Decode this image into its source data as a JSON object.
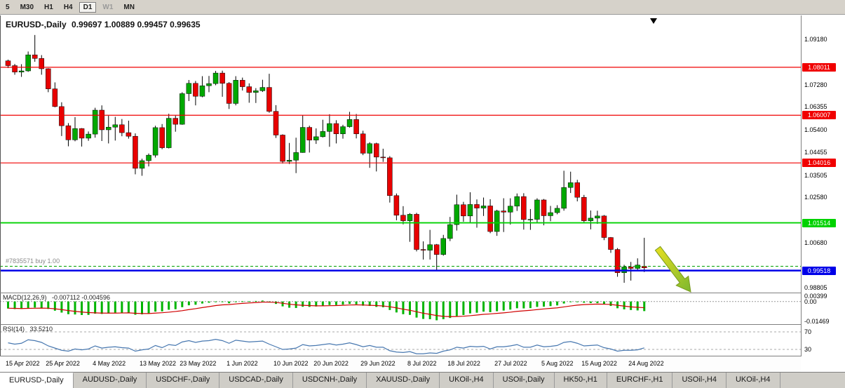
{
  "toolbar": {
    "timeframes": [
      {
        "label": "5",
        "active": false,
        "muted": false
      },
      {
        "label": "M30",
        "active": false,
        "muted": false
      },
      {
        "label": "H1",
        "active": false,
        "muted": false
      },
      {
        "label": "H4",
        "active": false,
        "muted": false
      },
      {
        "label": "D1",
        "active": true,
        "muted": false
      },
      {
        "label": "W1",
        "active": false,
        "muted": true
      },
      {
        "label": "MN",
        "active": false,
        "muted": false
      }
    ]
  },
  "chart": {
    "title": "EURUSD-,Daily",
    "ohlc_text": "0.99697 1.00889 0.99457 0.99635",
    "open": "0.99697",
    "high": "1.00889",
    "low": "0.99457",
    "close": "0.99635",
    "order_line": {
      "text": "#7835571 buy 1.00",
      "price": 0.997,
      "color": "#00A000"
    },
    "hlines": [
      {
        "price": 1.08011,
        "label": "1.08011",
        "color": "#F00000",
        "width": 1.2
      },
      {
        "price": 1.06007,
        "label": "1.06007",
        "color": "#F00000",
        "width": 1.2
      },
      {
        "price": 1.04016,
        "label": "1.04016",
        "color": "#F00000",
        "width": 1.2
      },
      {
        "price": 1.01514,
        "label": "1.01514",
        "color": "#00D200",
        "width": 1.8
      },
      {
        "price": 0.99518,
        "label": "0.99518",
        "color": "#0000E8",
        "width": 2.5
      }
    ],
    "y_ticks": [
      "1.09180",
      "1.07280",
      "1.06355",
      "1.05400",
      "1.04455",
      "1.03505",
      "1.02580",
      "1.00680",
      "0.98805"
    ],
    "sell_marker": {
      "glyph": "down-triangle",
      "color": "#000000"
    },
    "arrow_color_start": "#E8E020",
    "arrow_color_end": "#7CB82F"
  },
  "chart_data": {
    "type": "candlestick",
    "symbol": "EURUSD",
    "period": "Daily",
    "up_color": "#00A800",
    "down_color": "#E80000",
    "x_ticks": [
      {
        "label": "15 Apr 2022",
        "i": 0
      },
      {
        "label": "25 Apr 2022",
        "i": 6
      },
      {
        "label": "4 May 2022",
        "i": 13
      },
      {
        "label": "13 May 2022",
        "i": 20
      },
      {
        "label": "23 May 2022",
        "i": 26
      },
      {
        "label": "1 Jun 2022",
        "i": 33
      },
      {
        "label": "10 Jun 2022",
        "i": 40
      },
      {
        "label": "20 Jun 2022",
        "i": 46
      },
      {
        "label": "29 Jun 2022",
        "i": 53
      },
      {
        "label": "8 Jul 2022",
        "i": 60
      },
      {
        "label": "18 Jul 2022",
        "i": 66
      },
      {
        "label": "27 Jul 2022",
        "i": 73
      },
      {
        "label": "5 Aug 2022",
        "i": 80
      },
      {
        "label": "15 Aug 2022",
        "i": 86
      },
      {
        "label": "24 Aug 2022",
        "i": 93
      }
    ],
    "candles": [
      [
        1.0828,
        1.0833,
        1.0798,
        1.0808
      ],
      [
        1.0808,
        1.0815,
        1.077,
        1.0781
      ],
      [
        1.0781,
        1.0814,
        1.0761,
        1.0786
      ],
      [
        1.0786,
        1.0867,
        1.0782,
        1.0853
      ],
      [
        1.0853,
        1.0936,
        1.0824,
        1.0838
      ],
      [
        1.0838,
        1.0852,
        1.077,
        1.0795
      ],
      [
        1.0795,
        1.0797,
        1.0697,
        1.0711
      ],
      [
        1.0711,
        1.0738,
        1.0634,
        1.0637
      ],
      [
        1.0637,
        1.0655,
        1.0514,
        1.0557
      ],
      [
        1.0557,
        1.0568,
        1.0471,
        1.0498
      ],
      [
        1.0498,
        1.0593,
        1.0492,
        1.0545
      ],
      [
        1.0545,
        1.0547,
        1.047,
        1.0505
      ],
      [
        1.0505,
        1.0533,
        1.0494,
        1.0522
      ],
      [
        1.0522,
        1.0632,
        1.0507,
        1.0622
      ],
      [
        1.0622,
        1.0642,
        1.0493,
        1.054
      ],
      [
        1.054,
        1.0599,
        1.0483,
        1.0551
      ],
      [
        1.0551,
        1.0594,
        1.0495,
        1.0561
      ],
      [
        1.0561,
        1.0585,
        1.0513,
        1.0528
      ],
      [
        1.0528,
        1.0578,
        1.0503,
        1.0513
      ],
      [
        1.0513,
        1.0525,
        1.0354,
        1.0379
      ],
      [
        1.0379,
        1.0419,
        1.0348,
        1.0411
      ],
      [
        1.0411,
        1.0441,
        1.0387,
        1.0434
      ],
      [
        1.0434,
        1.0557,
        1.0424,
        1.0549
      ],
      [
        1.0549,
        1.0564,
        1.0459,
        1.0465
      ],
      [
        1.0465,
        1.0607,
        1.0462,
        1.0588
      ],
      [
        1.0588,
        1.0599,
        1.0532,
        1.0563
      ],
      [
        1.0563,
        1.0697,
        1.0561,
        1.0691
      ],
      [
        1.0691,
        1.0748,
        1.066,
        1.0734
      ],
      [
        1.0734,
        1.0744,
        1.0642,
        1.068
      ],
      [
        1.068,
        1.0764,
        1.0676,
        1.0724
      ],
      [
        1.0724,
        1.0765,
        1.0697,
        1.0733
      ],
      [
        1.0733,
        1.0786,
        1.0726,
        1.0777
      ],
      [
        1.0777,
        1.0787,
        1.0678,
        1.0734
      ],
      [
        1.0734,
        1.0739,
        1.0627,
        1.065
      ],
      [
        1.065,
        1.0764,
        1.0642,
        1.0747
      ],
      [
        1.0747,
        1.0758,
        1.0704,
        1.072
      ],
      [
        1.072,
        1.0734,
        1.0653,
        1.0696
      ],
      [
        1.0696,
        1.0714,
        1.0652,
        1.0703
      ],
      [
        1.0703,
        1.0749,
        1.0698,
        1.0717
      ],
      [
        1.0717,
        1.0774,
        1.0611,
        1.0617
      ],
      [
        1.0617,
        1.0643,
        1.0506,
        1.0518
      ],
      [
        1.0518,
        1.0521,
        1.0399,
        1.0408
      ],
      [
        1.0408,
        1.0485,
        1.0397,
        1.0413
      ],
      [
        1.0413,
        1.0507,
        1.0359,
        1.0445
      ],
      [
        1.0445,
        1.0601,
        1.0444,
        1.055
      ],
      [
        1.055,
        1.0557,
        1.0445,
        1.0497
      ],
      [
        1.0497,
        1.0546,
        1.0481,
        1.0511
      ],
      [
        1.0511,
        1.0582,
        1.0508,
        1.0533
      ],
      [
        1.0533,
        1.0605,
        1.0469,
        1.0566
      ],
      [
        1.0566,
        1.058,
        1.0483,
        1.0523
      ],
      [
        1.0523,
        1.0561,
        1.0503,
        1.0553
      ],
      [
        1.0553,
        1.0615,
        1.0549,
        1.0583
      ],
      [
        1.0583,
        1.0606,
        1.0504,
        1.0523
      ],
      [
        1.0523,
        1.0536,
        1.0434,
        1.0442
      ],
      [
        1.0442,
        1.0488,
        1.0381,
        1.0482
      ],
      [
        1.0482,
        1.0486,
        1.0366,
        1.0426
      ],
      [
        1.0426,
        1.0461,
        1.0406,
        1.0423
      ],
      [
        1.0423,
        1.043,
        1.0236,
        1.0265
      ],
      [
        1.0265,
        1.0274,
        1.0162,
        1.0183
      ],
      [
        1.0183,
        1.0221,
        1.0145,
        1.016
      ],
      [
        1.016,
        1.0192,
        1.0072,
        1.0187
      ],
      [
        1.0187,
        1.0193,
        1.0032,
        1.004
      ],
      [
        1.004,
        1.0074,
        0.9998,
        1.0037
      ],
      [
        1.0037,
        1.0122,
        0.9998,
        1.006
      ],
      [
        1.006,
        1.0063,
        0.9952,
        1.0019
      ],
      [
        1.0019,
        1.0101,
        1.0014,
        1.0086
      ],
      [
        1.0086,
        1.0176,
        1.0075,
        1.0144
      ],
      [
        1.0144,
        1.0269,
        1.0119,
        1.0227
      ],
      [
        1.0227,
        1.0239,
        1.0156,
        1.018
      ],
      [
        1.018,
        1.0279,
        1.0152,
        1.0228
      ],
      [
        1.0228,
        1.0249,
        1.0131,
        1.0213
      ],
      [
        1.0213,
        1.0257,
        1.018,
        1.0222
      ],
      [
        1.0222,
        1.025,
        1.0108,
        1.0115
      ],
      [
        1.0115,
        1.0206,
        1.0097,
        1.0201
      ],
      [
        1.0201,
        1.0254,
        1.0113,
        1.0196
      ],
      [
        1.0196,
        1.0254,
        1.0144,
        1.0221
      ],
      [
        1.0221,
        1.0274,
        1.0201,
        1.0261
      ],
      [
        1.0261,
        1.0275,
        1.0123,
        1.0165
      ],
      [
        1.0165,
        1.0209,
        1.0122,
        1.0166
      ],
      [
        1.0166,
        1.0254,
        1.0151,
        1.0247
      ],
      [
        1.0247,
        1.0251,
        1.0141,
        1.0181
      ],
      [
        1.0181,
        1.0222,
        1.0158,
        1.0194
      ],
      [
        1.0194,
        1.0225,
        1.0187,
        1.0212
      ],
      [
        1.0212,
        1.0369,
        1.0202,
        1.0299
      ],
      [
        1.0299,
        1.0365,
        1.0276,
        1.0319
      ],
      [
        1.0319,
        1.0331,
        1.0241,
        1.0258
      ],
      [
        1.0258,
        1.0268,
        1.0154,
        1.016
      ],
      [
        1.016,
        1.0203,
        1.0124,
        1.0171
      ],
      [
        1.0171,
        1.0202,
        1.0147,
        1.018
      ],
      [
        1.018,
        1.0184,
        1.0079,
        1.009
      ],
      [
        1.009,
        1.0092,
        1.0026,
        1.004
      ],
      [
        1.004,
        1.0046,
        0.9926,
        0.9943
      ],
      [
        0.9943,
        0.9976,
        0.9901,
        0.9967
      ],
      [
        0.9967,
        0.9988,
        0.991,
        0.9961
      ],
      [
        0.9961,
        1.0003,
        0.9955,
        0.9975
      ],
      [
        0.99697,
        1.00889,
        0.99457,
        0.99635
      ]
    ],
    "indicators": [
      {
        "name": "MACD",
        "label": "MACD(12,26,9)",
        "values_text": "-0.007112 -0.004596",
        "main_value": -0.007112,
        "signal_value": -0.004596,
        "hist_color": "#00B400",
        "signal_color": "#D00000",
        "axis_labels": [
          "0.00399",
          "0.00",
          "-0.01469"
        ],
        "hist": [
          -0.0052,
          -0.0056,
          -0.0055,
          -0.0048,
          -0.0045,
          -0.0047,
          -0.0055,
          -0.0068,
          -0.0082,
          -0.0094,
          -0.0096,
          -0.01,
          -0.0099,
          -0.009,
          -0.0092,
          -0.0089,
          -0.0083,
          -0.0082,
          -0.0082,
          -0.0098,
          -0.0095,
          -0.0089,
          -0.0075,
          -0.0073,
          -0.0061,
          -0.0057,
          -0.0042,
          -0.0028,
          -0.0024,
          -0.0015,
          -0.0009,
          -0.0001,
          -0.0003,
          -0.0013,
          -0.0002,
          0.0002,
          0.0002,
          0.0004,
          0.0007,
          -0.0003,
          -0.0018,
          -0.0036,
          -0.0046,
          -0.0048,
          -0.0039,
          -0.004,
          -0.0037,
          -0.0032,
          -0.0026,
          -0.0026,
          -0.0023,
          -0.0018,
          -0.0021,
          -0.0031,
          -0.0033,
          -0.004,
          -0.0043,
          -0.0063,
          -0.0081,
          -0.0094,
          -0.0099,
          -0.0119,
          -0.0129,
          -0.0131,
          -0.0139,
          -0.0131,
          -0.0122,
          -0.0107,
          -0.01,
          -0.0088,
          -0.0083,
          -0.0075,
          -0.0079,
          -0.0072,
          -0.0067,
          -0.006,
          -0.005,
          -0.0051,
          -0.0049,
          -0.004,
          -0.0038,
          -0.0034,
          -0.0029,
          -0.0015,
          -0.0004,
          -0.0002,
          -0.0009,
          -0.0012,
          -0.0012,
          -0.0022,
          -0.0033,
          -0.005,
          -0.0058,
          -0.0063,
          -0.0066,
          -0.0071
        ],
        "signal": [
          -0.005,
          -0.0051,
          -0.0052,
          -0.0051,
          -0.005,
          -0.0049,
          -0.005,
          -0.0054,
          -0.006,
          -0.0067,
          -0.0073,
          -0.0078,
          -0.0082,
          -0.0084,
          -0.0086,
          -0.0086,
          -0.0086,
          -0.0085,
          -0.0084,
          -0.0087,
          -0.0089,
          -0.0089,
          -0.0086,
          -0.0083,
          -0.0079,
          -0.0074,
          -0.0068,
          -0.006,
          -0.0053,
          -0.0045,
          -0.0038,
          -0.003,
          -0.0025,
          -0.0023,
          -0.0018,
          -0.0014,
          -0.0011,
          -0.0008,
          -0.0005,
          -0.0005,
          -0.0007,
          -0.0013,
          -0.002,
          -0.0025,
          -0.0028,
          -0.003,
          -0.0032,
          -0.0032,
          -0.0031,
          -0.003,
          -0.0028,
          -0.0026,
          -0.0025,
          -0.0026,
          -0.0028,
          -0.003,
          -0.0033,
          -0.0039,
          -0.0047,
          -0.0057,
          -0.0065,
          -0.0076,
          -0.0087,
          -0.0095,
          -0.0104,
          -0.011,
          -0.0112,
          -0.0111,
          -0.0109,
          -0.0105,
          -0.01,
          -0.0095,
          -0.0092,
          -0.0088,
          -0.0084,
          -0.0079,
          -0.0073,
          -0.0069,
          -0.0065,
          -0.006,
          -0.0055,
          -0.0051,
          -0.0047,
          -0.004,
          -0.0033,
          -0.0027,
          -0.0023,
          -0.0021,
          -0.0019,
          -0.002,
          -0.0022,
          -0.0028,
          -0.0034,
          -0.004,
          -0.0043,
          -0.0046
        ]
      },
      {
        "name": "RSI",
        "label": "RSI(14)",
        "value_text": "33.5210",
        "line_color": "#4878B0",
        "levels": [
          "70",
          "30"
        ],
        "values": [
          45,
          42,
          44,
          52,
          50,
          46,
          38,
          33,
          28,
          26,
          31,
          29,
          31,
          38,
          33,
          35,
          36,
          34,
          33,
          26,
          29,
          31,
          39,
          34,
          41,
          39,
          47,
          50,
          46,
          49,
          50,
          53,
          50,
          44,
          51,
          49,
          47,
          48,
          49,
          42,
          36,
          30,
          31,
          33,
          41,
          38,
          39,
          41,
          43,
          40,
          42,
          45,
          41,
          36,
          39,
          35,
          35,
          27,
          24,
          23,
          25,
          20,
          20,
          22,
          21,
          26,
          29,
          35,
          33,
          37,
          36,
          37,
          31,
          36,
          36,
          38,
          41,
          35,
          35,
          40,
          36,
          37,
          39,
          46,
          48,
          44,
          38,
          39,
          40,
          34,
          31,
          26,
          28,
          28,
          29,
          33.52
        ]
      }
    ]
  },
  "tabs": [
    {
      "label": "EURUSD-,Daily",
      "active": true
    },
    {
      "label": "AUDUSD-,Daily",
      "active": false
    },
    {
      "label": "USDCHF-,Daily",
      "active": false
    },
    {
      "label": "USDCAD-,Daily",
      "active": false
    },
    {
      "label": "USDCNH-,Daily",
      "active": false
    },
    {
      "label": "XAUUSD-,Daily",
      "active": false
    },
    {
      "label": "UKOil-,H4",
      "active": false
    },
    {
      "label": "USOil-,Daily",
      "active": false
    },
    {
      "label": "HK50-,H1",
      "active": false
    },
    {
      "label": "EURCHF-,H1",
      "active": false
    },
    {
      "label": "USOil-,H4",
      "active": false
    },
    {
      "label": "UKOil-,H4",
      "active": false
    }
  ]
}
